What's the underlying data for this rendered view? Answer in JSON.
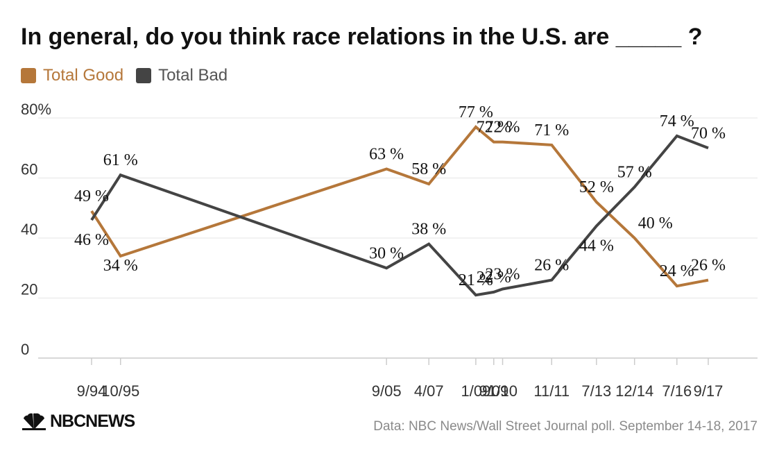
{
  "title": "In general, do you think race relations in the U.S. are _____ ?",
  "logo": {
    "text": "NBCNEWS",
    "icon": "peacock-icon"
  },
  "source": "Data: NBC News/Wall Street Journal poll. September 14-18, 2017",
  "colors": {
    "good": "#b5773a",
    "bad": "#444444",
    "grid": "#e6e6e6",
    "axis": "#cccccc"
  },
  "chart_data": {
    "type": "line",
    "title": "In general, do you think race relations in the U.S. are _____ ?",
    "xlabel": "",
    "ylabel": "",
    "ylim": [
      0,
      80
    ],
    "yticks": [
      {
        "value": 0,
        "label": "0"
      },
      {
        "value": 20,
        "label": "20"
      },
      {
        "value": 40,
        "label": "40"
      },
      {
        "value": 60,
        "label": "60"
      },
      {
        "value": 80,
        "label": "80%"
      }
    ],
    "x_time_range": [
      1994.67,
      2017.67
    ],
    "categories": [
      {
        "label": "9/94",
        "t": 1994.67
      },
      {
        "label": "10/95",
        "t": 1995.75
      },
      {
        "label": "9/05",
        "t": 2005.67
      },
      {
        "label": "4/07",
        "t": 2007.25
      },
      {
        "label": "1/09",
        "t": 2009.0
      },
      {
        "label": "9/09",
        "t": 2009.67
      },
      {
        "label": "1/10",
        "t": 2010.0
      },
      {
        "label": "11/11",
        "t": 2011.83
      },
      {
        "label": "7/13",
        "t": 2013.5
      },
      {
        "label": "12/14",
        "t": 2014.92
      },
      {
        "label": "7/16",
        "t": 2016.5
      },
      {
        "label": "9/17",
        "t": 2017.67
      }
    ],
    "legend_position": "top-left",
    "grid": true,
    "series": [
      {
        "name": "Total Good",
        "color": "#b5773a",
        "points": [
          {
            "category": "9/94",
            "value": 49
          },
          {
            "category": "10/95",
            "value": 34
          },
          {
            "category": "9/05",
            "value": 63
          },
          {
            "category": "4/07",
            "value": 58
          },
          {
            "category": "1/09",
            "value": 77
          },
          {
            "category": "9/09",
            "value": 72
          },
          {
            "category": "1/10",
            "value": 72
          },
          {
            "category": "11/11",
            "value": 71
          },
          {
            "category": "7/13",
            "value": 52
          },
          {
            "category": "12/14",
            "value": 40
          },
          {
            "category": "7/16",
            "value": 24
          },
          {
            "category": "9/17",
            "value": 26
          }
        ],
        "labels": [
          "49 %",
          "34 %",
          "63 %",
          "58 %",
          "77 %",
          "72 %",
          "72 %",
          "71 %",
          "52 %",
          "40 %",
          "24 %",
          "26 %"
        ]
      },
      {
        "name": "Total Bad",
        "color": "#444444",
        "points": [
          {
            "category": "9/94",
            "value": 46
          },
          {
            "category": "10/95",
            "value": 61
          },
          {
            "category": "9/05",
            "value": 30
          },
          {
            "category": "4/07",
            "value": 38
          },
          {
            "category": "1/09",
            "value": 21
          },
          {
            "category": "9/09",
            "value": 22
          },
          {
            "category": "1/10",
            "value": 23
          },
          {
            "category": "11/11",
            "value": 26
          },
          {
            "category": "7/13",
            "value": 44
          },
          {
            "category": "12/14",
            "value": 57
          },
          {
            "category": "7/16",
            "value": 74
          },
          {
            "category": "9/17",
            "value": 70
          }
        ],
        "labels": [
          "46 %",
          "61 %",
          "30 %",
          "38 %",
          "21 %",
          "22 %",
          "23 %",
          "26 %",
          "44 %",
          "57 %",
          "74 %",
          "70 %"
        ]
      }
    ]
  }
}
